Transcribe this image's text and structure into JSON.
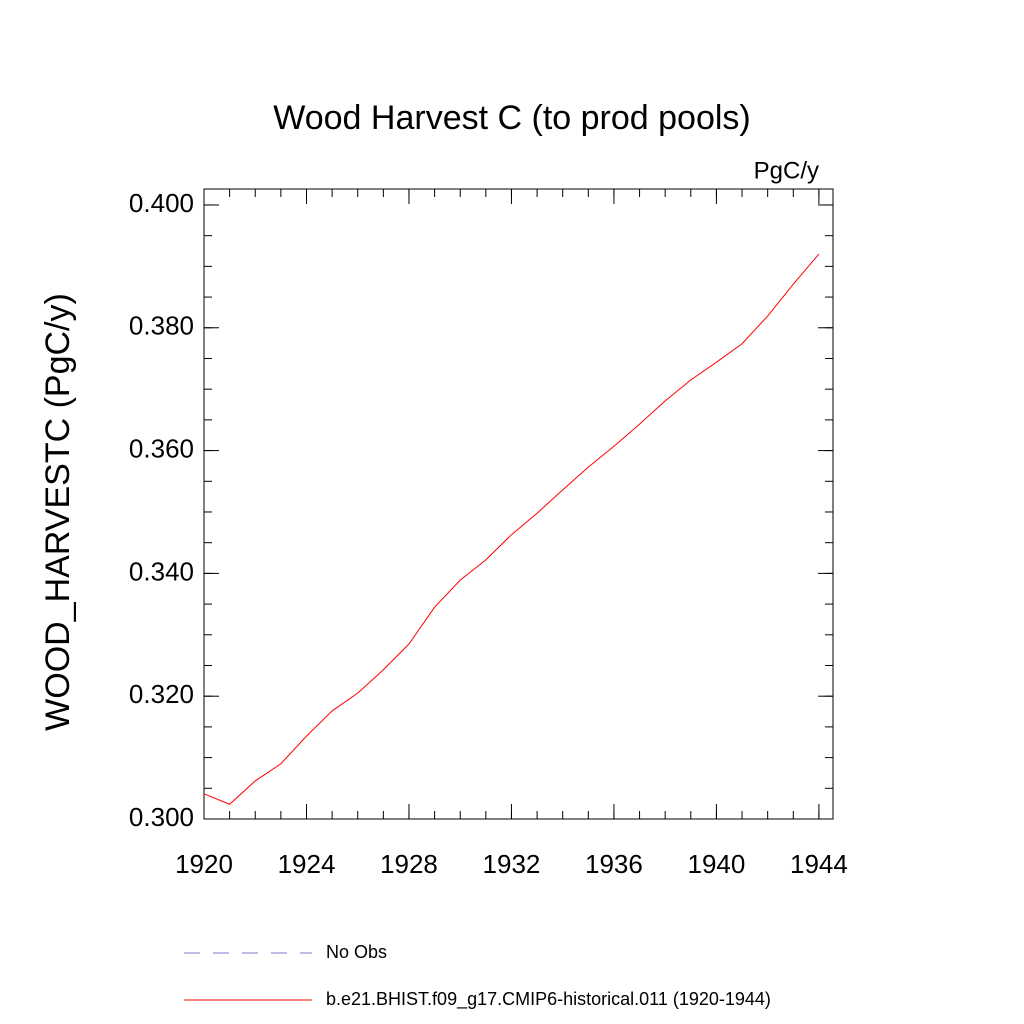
{
  "chart_data": {
    "type": "line",
    "title": "Wood Harvest C (to prod pools)",
    "units_label": "PgC/y",
    "ylabel": "WOOD_HARVESTC  (PgC/y)",
    "x": [
      1920,
      1921,
      1922,
      1923,
      1924,
      1925,
      1926,
      1927,
      1928,
      1929,
      1930,
      1931,
      1932,
      1933,
      1934,
      1935,
      1936,
      1937,
      1938,
      1939,
      1940,
      1941,
      1942,
      1943,
      1944
    ],
    "series": [
      {
        "name": "b.e21.BHIST.f09_g17.CMIP6-historical.011 (1920-1944)",
        "color": "#ff0000",
        "values": [
          0.3041,
          0.3024,
          0.3062,
          0.309,
          0.3135,
          0.3176,
          0.3205,
          0.3243,
          0.3285,
          0.3345,
          0.3389,
          0.3422,
          0.3463,
          0.3498,
          0.3536,
          0.3573,
          0.3607,
          0.3643,
          0.3681,
          0.3715,
          0.3744,
          0.3774,
          0.3819,
          0.3871,
          0.392
        ]
      }
    ],
    "legend": [
      {
        "name": "No Obs",
        "color": "#7777cc",
        "dashed": true
      },
      {
        "name": "b.e21.BHIST.f09_g17.CMIP6-historical.011 (1920-1944)",
        "color": "#ff0000",
        "dashed": false
      }
    ],
    "xlim": [
      1920,
      1944.55
    ],
    "ylim": [
      0.3,
      0.4026
    ],
    "xticks": [
      1920,
      1924,
      1928,
      1932,
      1936,
      1940,
      1944
    ],
    "yticks": [
      {
        "value": 0.3,
        "label": "0.300"
      },
      {
        "value": 0.32,
        "label": "0.320"
      },
      {
        "value": 0.34,
        "label": "0.340"
      },
      {
        "value": 0.36,
        "label": "0.360"
      },
      {
        "value": 0.38,
        "label": "0.380"
      },
      {
        "value": 0.4,
        "label": "0.400"
      }
    ],
    "xminor_step": 1,
    "yminor_step": 0.005,
    "grid": false
  }
}
